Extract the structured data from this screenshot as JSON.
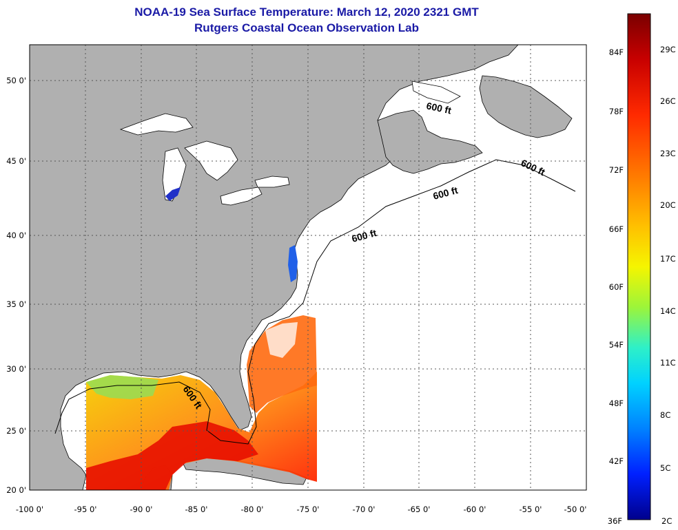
{
  "header": {
    "title": "NOAA-19 Sea Surface Temperature:  March 12, 2020 2321 GMT",
    "subtitle": "Rutgers Coastal Ocean Observation Lab"
  },
  "map": {
    "lon_ticks": [
      "-100 0'",
      "-95 0'",
      "-90 0'",
      "-85 0'",
      "-80 0'",
      "-75 0'",
      "-70 0'",
      "-65 0'",
      "-60 0'",
      "-55 0'",
      "-50 0'"
    ],
    "lat_ticks": [
      "50 0'",
      "45 0'",
      "40 0'",
      "35 0'",
      "30 0'",
      "25 0'",
      "20 0'"
    ],
    "isobath_labels": [
      "600 ft",
      "600 ft",
      "600 ft",
      "600 ft",
      "600 ft"
    ],
    "land_color": "#b0b0b0",
    "no_data_color": "#ffffff"
  },
  "colorbar": {
    "fahrenheit_labels": [
      "84F",
      "78F",
      "72F",
      "66F",
      "60F",
      "54F",
      "48F",
      "42F",
      "36F"
    ],
    "celsius_labels": [
      "29C",
      "26C",
      "23C",
      "20C",
      "17C",
      "14C",
      "11C",
      "8C",
      "5C",
      "2C"
    ],
    "gradient_colors": [
      "#7a0000",
      "#c80000",
      "#ff2a00",
      "#ff7a00",
      "#ffc000",
      "#f5f500",
      "#9cf53a",
      "#2ef0c8",
      "#00d2ff",
      "#0082ff",
      "#0020ff",
      "#00008c"
    ]
  }
}
